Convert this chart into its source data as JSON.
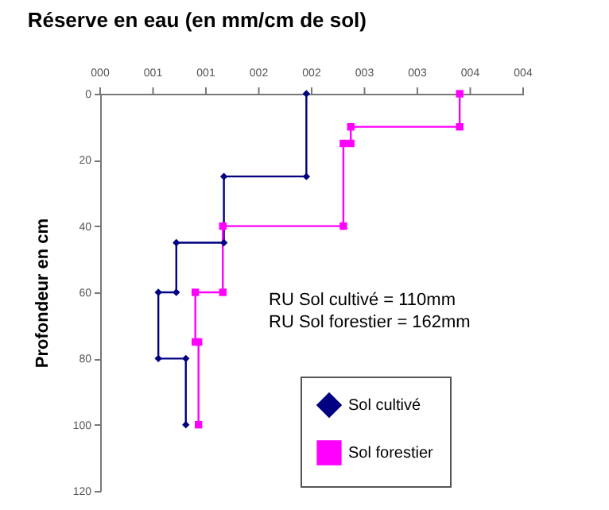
{
  "chart_data": {
    "type": "line",
    "title": "Réserve en eau (en mm/cm de sol)",
    "ylabel": "Profondeur en cm",
    "series": [
      {
        "name": "Sol cultivé",
        "color": "#000080",
        "marker": "diamond",
        "x": [
          1.95,
          1.95,
          1.17,
          1.17,
          0.72,
          0.72,
          0.55,
          0.55,
          0.81,
          0.81
        ],
        "values": [
          0,
          25,
          25,
          45,
          45,
          60,
          60,
          80,
          80,
          100
        ]
      },
      {
        "name": "Sol forestier",
        "color": "#ff00ff",
        "marker": "square",
        "x": [
          3.4,
          3.4,
          2.37,
          2.37,
          2.3,
          2.3,
          1.16,
          1.16,
          0.9,
          0.9,
          0.93,
          0.93
        ],
        "values": [
          0,
          10,
          10,
          15,
          15,
          40,
          40,
          60,
          60,
          75,
          75,
          100
        ]
      }
    ],
    "xlim": [
      0,
      4
    ],
    "xticks": [
      {
        "value": 0,
        "label": "000"
      },
      {
        "value": 0.5,
        "label": "001"
      },
      {
        "value": 1,
        "label": "001"
      },
      {
        "value": 1.5,
        "label": "002"
      },
      {
        "value": 2,
        "label": "002"
      },
      {
        "value": 2.5,
        "label": "003"
      },
      {
        "value": 3,
        "label": "003"
      },
      {
        "value": 3.5,
        "label": "004"
      },
      {
        "value": 4,
        "label": "004"
      }
    ],
    "ylim": [
      120,
      0
    ],
    "yticks": [
      0,
      20,
      40,
      60,
      80,
      100,
      120
    ],
    "annotations": [
      "RU Sol cultivé = 110mm",
      "RU Sol forestier = 162mm"
    ],
    "legend": "bottom right",
    "grid": false
  }
}
